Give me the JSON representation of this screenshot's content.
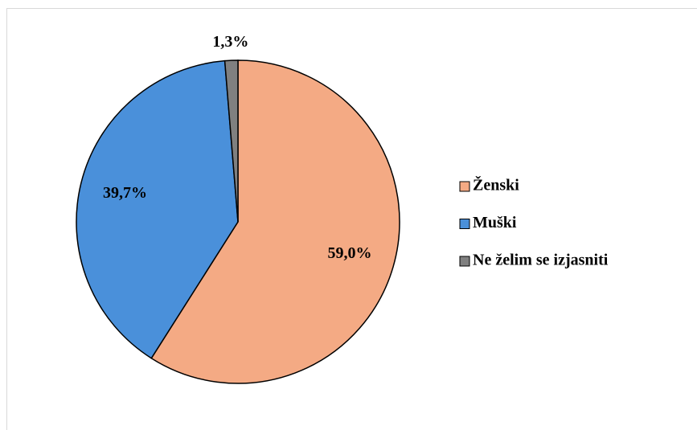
{
  "chart_data": {
    "type": "pie",
    "categories": [
      "Ženski",
      "Muški",
      "Ne želim se izjasniti"
    ],
    "values": [
      59.0,
      39.7,
      1.3
    ],
    "value_labels": [
      "59,0%",
      "39,7%",
      "1,3%"
    ],
    "colors": [
      "#f4aa84",
      "#4a90da",
      "#808080"
    ],
    "legend": "right"
  }
}
